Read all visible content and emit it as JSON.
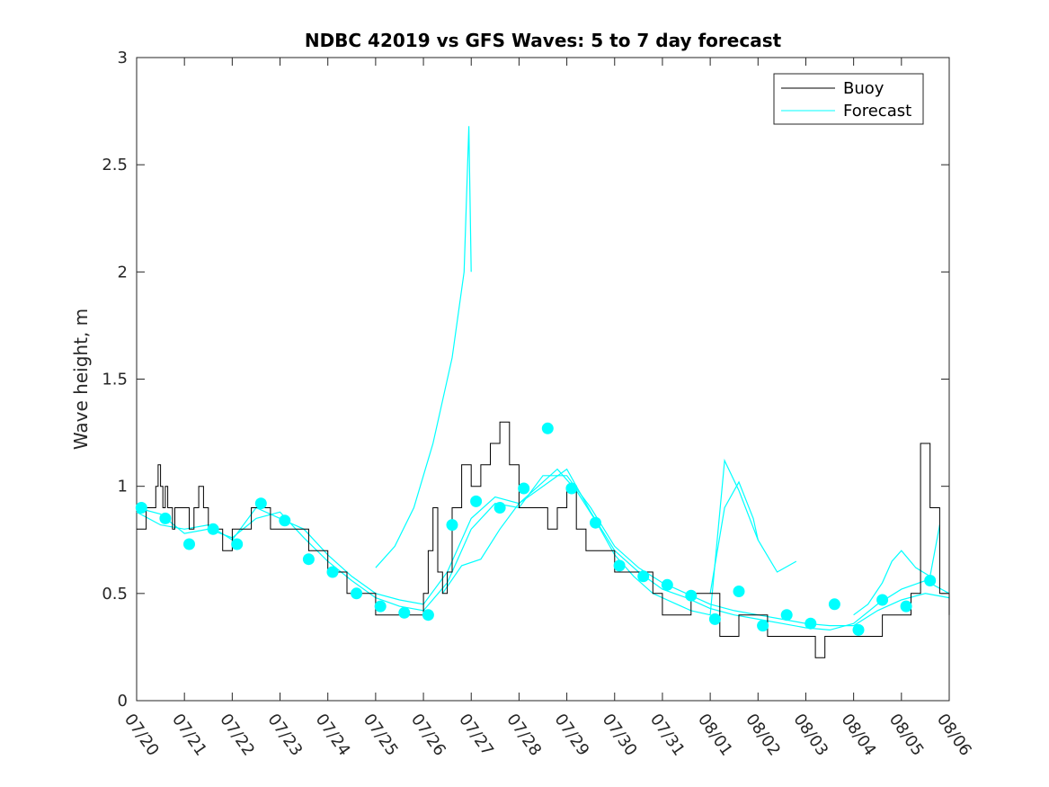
{
  "chart_data": {
    "type": "line",
    "title": "NDBC 42019 vs GFS Waves: 5 to 7 day forecast",
    "xlabel": "",
    "ylabel": "Wave height, m",
    "xlim": [
      "07/20",
      "08/06"
    ],
    "ylim": [
      0,
      3
    ],
    "yticks": [
      0,
      0.5,
      1,
      1.5,
      2,
      2.5,
      3
    ],
    "ytick_labels": [
      "0",
      "0.5",
      "1",
      "1.5",
      "2",
      "2.5",
      "3"
    ],
    "xtick_labels": [
      "07/20",
      "07/21",
      "07/22",
      "07/23",
      "07/24",
      "07/25",
      "07/26",
      "07/27",
      "07/28",
      "07/29",
      "07/30",
      "07/31",
      "08/01",
      "08/02",
      "08/03",
      "08/04",
      "08/05",
      "08/06"
    ],
    "grid": false,
    "legend": {
      "position": "top-right",
      "entries": [
        {
          "label": "Buoy",
          "color": "#000000"
        },
        {
          "label": "Forecast",
          "color": "#00ffff"
        }
      ]
    },
    "colors": {
      "buoy": "#000000",
      "forecast": "#00ffff"
    },
    "buoy": {
      "x": [
        0.0,
        0.2,
        0.4,
        0.45,
        0.5,
        0.55,
        0.6,
        0.65,
        0.7,
        0.75,
        0.8,
        0.9,
        1.0,
        1.1,
        1.2,
        1.3,
        1.4,
        1.5,
        1.6,
        1.7,
        1.8,
        1.9,
        2.0,
        2.2,
        2.4,
        2.6,
        2.8,
        3.0,
        3.2,
        3.4,
        3.6,
        3.8,
        4.0,
        4.2,
        4.4,
        4.6,
        4.8,
        5.0,
        5.2,
        5.4,
        5.6,
        5.8,
        6.0,
        6.1,
        6.2,
        6.3,
        6.4,
        6.5,
        6.6,
        6.8,
        7.0,
        7.2,
        7.4,
        7.6,
        7.8,
        8.0,
        8.2,
        8.4,
        8.6,
        8.8,
        9.0,
        9.2,
        9.4,
        9.6,
        9.8,
        10.0,
        10.2,
        10.4,
        10.6,
        10.8,
        11.0,
        11.2,
        11.4,
        11.6,
        11.8,
        12.0,
        12.2,
        12.4,
        12.6,
        12.8,
        13.0,
        13.2,
        13.4,
        13.6,
        13.8,
        14.0,
        14.2,
        14.4,
        14.6,
        14.8,
        15.0,
        15.2,
        15.4,
        15.6,
        15.8,
        16.0,
        16.05,
        16.1,
        16.2,
        16.4,
        16.6,
        16.8,
        17.0
      ],
      "y": [
        0.8,
        0.9,
        1.0,
        1.1,
        1.0,
        0.9,
        1.0,
        0.9,
        0.9,
        0.8,
        0.9,
        0.9,
        0.9,
        0.8,
        0.9,
        1.0,
        0.9,
        0.8,
        0.8,
        0.8,
        0.7,
        0.7,
        0.8,
        0.8,
        0.9,
        0.9,
        0.8,
        0.8,
        0.8,
        0.8,
        0.7,
        0.7,
        0.6,
        0.6,
        0.5,
        0.5,
        0.5,
        0.4,
        0.4,
        0.4,
        0.4,
        0.4,
        0.5,
        0.7,
        0.9,
        0.6,
        0.5,
        0.6,
        0.9,
        1.1,
        1.0,
        1.1,
        1.2,
        1.3,
        1.1,
        0.9,
        0.9,
        0.9,
        0.8,
        0.9,
        1.0,
        0.8,
        0.7,
        0.7,
        0.7,
        0.6,
        0.6,
        0.6,
        0.6,
        0.5,
        0.4,
        0.4,
        0.4,
        0.5,
        0.5,
        0.5,
        0.3,
        0.3,
        0.4,
        0.4,
        0.4,
        0.3,
        0.3,
        0.3,
        0.3,
        0.3,
        0.2,
        0.3,
        0.3,
        0.3,
        0.3,
        0.3,
        0.3,
        0.4,
        0.4,
        0.4,
        0.4,
        0.4,
        0.5,
        1.2,
        0.9,
        0.5,
        0.4
      ]
    },
    "forecast_series": [
      {
        "x": [
          0.0,
          0.5,
          1.0,
          1.5,
          2.0,
          2.5,
          3.0,
          3.5,
          4.0,
          4.5,
          5.0,
          5.5,
          6.0,
          6.5,
          7.0,
          7.5,
          8.0,
          8.5,
          9.0,
          9.5,
          10.0,
          10.5,
          11.0,
          11.5,
          12.0,
          12.5,
          13.0,
          13.5,
          14.0,
          14.5,
          15.0,
          15.5,
          16.0,
          16.5,
          17.0
        ],
        "y": [
          0.9,
          0.87,
          0.78,
          0.8,
          0.76,
          0.85,
          0.88,
          0.76,
          0.65,
          0.56,
          0.48,
          0.44,
          0.42,
          0.55,
          0.8,
          0.92,
          0.9,
          1.05,
          1.05,
          0.9,
          0.72,
          0.62,
          0.55,
          0.5,
          0.45,
          0.42,
          0.4,
          0.38,
          0.36,
          0.35,
          0.35,
          0.42,
          0.47,
          0.5,
          0.48
        ]
      },
      {
        "x": [
          0.0,
          0.5,
          1.0,
          1.5,
          2.0,
          2.5,
          3.0,
          3.5,
          4.0,
          4.5,
          5.0,
          5.5,
          6.0,
          6.5,
          7.0,
          7.5,
          8.0,
          8.5,
          9.0,
          9.5,
          10.0,
          10.5,
          11.0,
          11.5,
          12.0,
          12.5,
          13.0,
          13.5,
          14.0,
          14.5,
          15.0,
          15.5,
          16.0,
          16.5,
          17.0
        ],
        "y": [
          0.88,
          0.82,
          0.8,
          0.82,
          0.75,
          0.9,
          0.85,
          0.8,
          0.68,
          0.58,
          0.5,
          0.47,
          0.45,
          0.6,
          0.85,
          0.95,
          0.92,
          1.0,
          1.08,
          0.88,
          0.7,
          0.6,
          0.52,
          0.48,
          0.43,
          0.4,
          0.38,
          0.36,
          0.34,
          0.33,
          0.36,
          0.45,
          0.52,
          0.56,
          0.5
        ]
      },
      {
        "x": [
          5.0,
          5.4,
          5.8,
          6.2,
          6.6,
          6.85,
          6.95,
          7.0
        ],
        "y": [
          0.62,
          0.72,
          0.9,
          1.2,
          1.6,
          2.0,
          2.68,
          2.0
        ]
      },
      {
        "x": [
          6.4,
          6.8,
          7.2,
          7.6,
          8.0,
          8.4,
          8.8,
          9.2,
          9.6,
          10.0,
          10.4,
          10.8,
          11.2,
          11.6,
          12.0,
          12.3,
          12.6,
          13.0,
          13.4,
          13.8
        ],
        "y": [
          0.5,
          0.63,
          0.66,
          0.8,
          0.92,
          1.0,
          1.08,
          0.98,
          0.84,
          0.68,
          0.58,
          0.5,
          0.46,
          0.42,
          0.4,
          1.12,
          0.98,
          0.75,
          0.6,
          0.65
        ]
      },
      {
        "x": [
          12.0,
          12.3,
          12.6,
          12.9,
          13.0
        ],
        "y": [
          0.5,
          0.9,
          1.02,
          0.85,
          0.75
        ]
      },
      {
        "x": [
          15.0,
          15.3,
          15.6,
          15.8,
          16.0,
          16.3,
          16.6,
          16.8
        ],
        "y": [
          0.4,
          0.45,
          0.55,
          0.65,
          0.7,
          0.62,
          0.58,
          0.82
        ]
      }
    ],
    "forecast_markers": {
      "x": [
        0.1,
        0.6,
        1.1,
        1.6,
        2.1,
        2.6,
        3.1,
        3.6,
        4.1,
        4.6,
        5.1,
        5.6,
        6.1,
        6.6,
        7.1,
        7.6,
        8.1,
        8.6,
        9.1,
        9.6,
        10.1,
        10.6,
        11.1,
        11.6,
        12.1,
        12.6,
        13.1,
        13.6,
        14.1,
        14.6,
        15.1,
        15.6,
        16.1,
        16.6
      ],
      "y": [
        0.9,
        0.85,
        0.73,
        0.8,
        0.73,
        0.92,
        0.84,
        0.66,
        0.6,
        0.5,
        0.44,
        0.41,
        0.4,
        0.82,
        0.93,
        0.9,
        0.99,
        1.27,
        0.99,
        0.83,
        0.63,
        0.58,
        0.54,
        0.49,
        0.38,
        0.51,
        0.35,
        0.4,
        0.36,
        0.45,
        0.33,
        0.47,
        0.44,
        0.56
      ]
    }
  }
}
